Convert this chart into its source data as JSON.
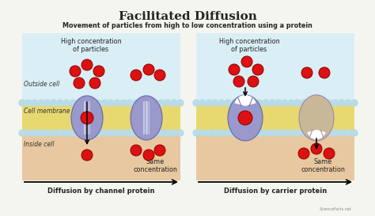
{
  "title": "Facilitated Diffusion",
  "subtitle": "Movement of particles from high to low concentration using a protein",
  "left_label": "Diffusion by channel protein",
  "right_label": "Diffusion by carrier protein",
  "outside_cell": "Outside cell",
  "cell_membrane": "Cell membrane",
  "inside_cell": "Inside cell",
  "high_conc": "High concentration\nof particles",
  "same_conc": "Same\nconcentration",
  "bg_color": "#f5f5f0",
  "outside_color": "#daeef5",
  "membrane_color": "#e8d870",
  "inside_color": "#e8c8a0",
  "protein_color": "#9999cc",
  "protein_color2": "#c8b898",
  "particle_color": "#dd1111",
  "particle_edge": "#880000",
  "dot_color": "#b8dce8",
  "fig_width": 4.74,
  "fig_height": 2.73,
  "dpi": 100
}
